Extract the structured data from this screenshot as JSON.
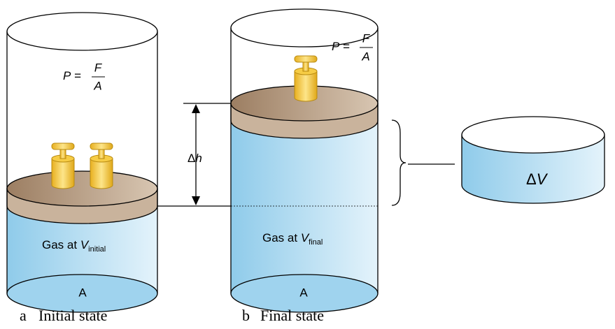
{
  "panels": [
    {
      "letter": "a",
      "caption": "Initial state",
      "pressure": {
        "lhs": "P",
        "eq": "=",
        "num": "F",
        "den": "A"
      },
      "gas": {
        "prefix": "Gas at",
        "var": "V",
        "sub": "initial"
      },
      "base": "A"
    },
    {
      "letter": "b",
      "caption": "Final state",
      "pressure": {
        "lhs": "P",
        "eq": "=",
        "num": "F",
        "den": "A"
      },
      "gas": {
        "prefix": "Gas at",
        "var": "V",
        "sub": "final"
      },
      "base": "A"
    }
  ],
  "delta_h": {
    "symbol": "Δ",
    "var": "h"
  },
  "delta_v": {
    "symbol": "Δ",
    "var": "V"
  }
}
